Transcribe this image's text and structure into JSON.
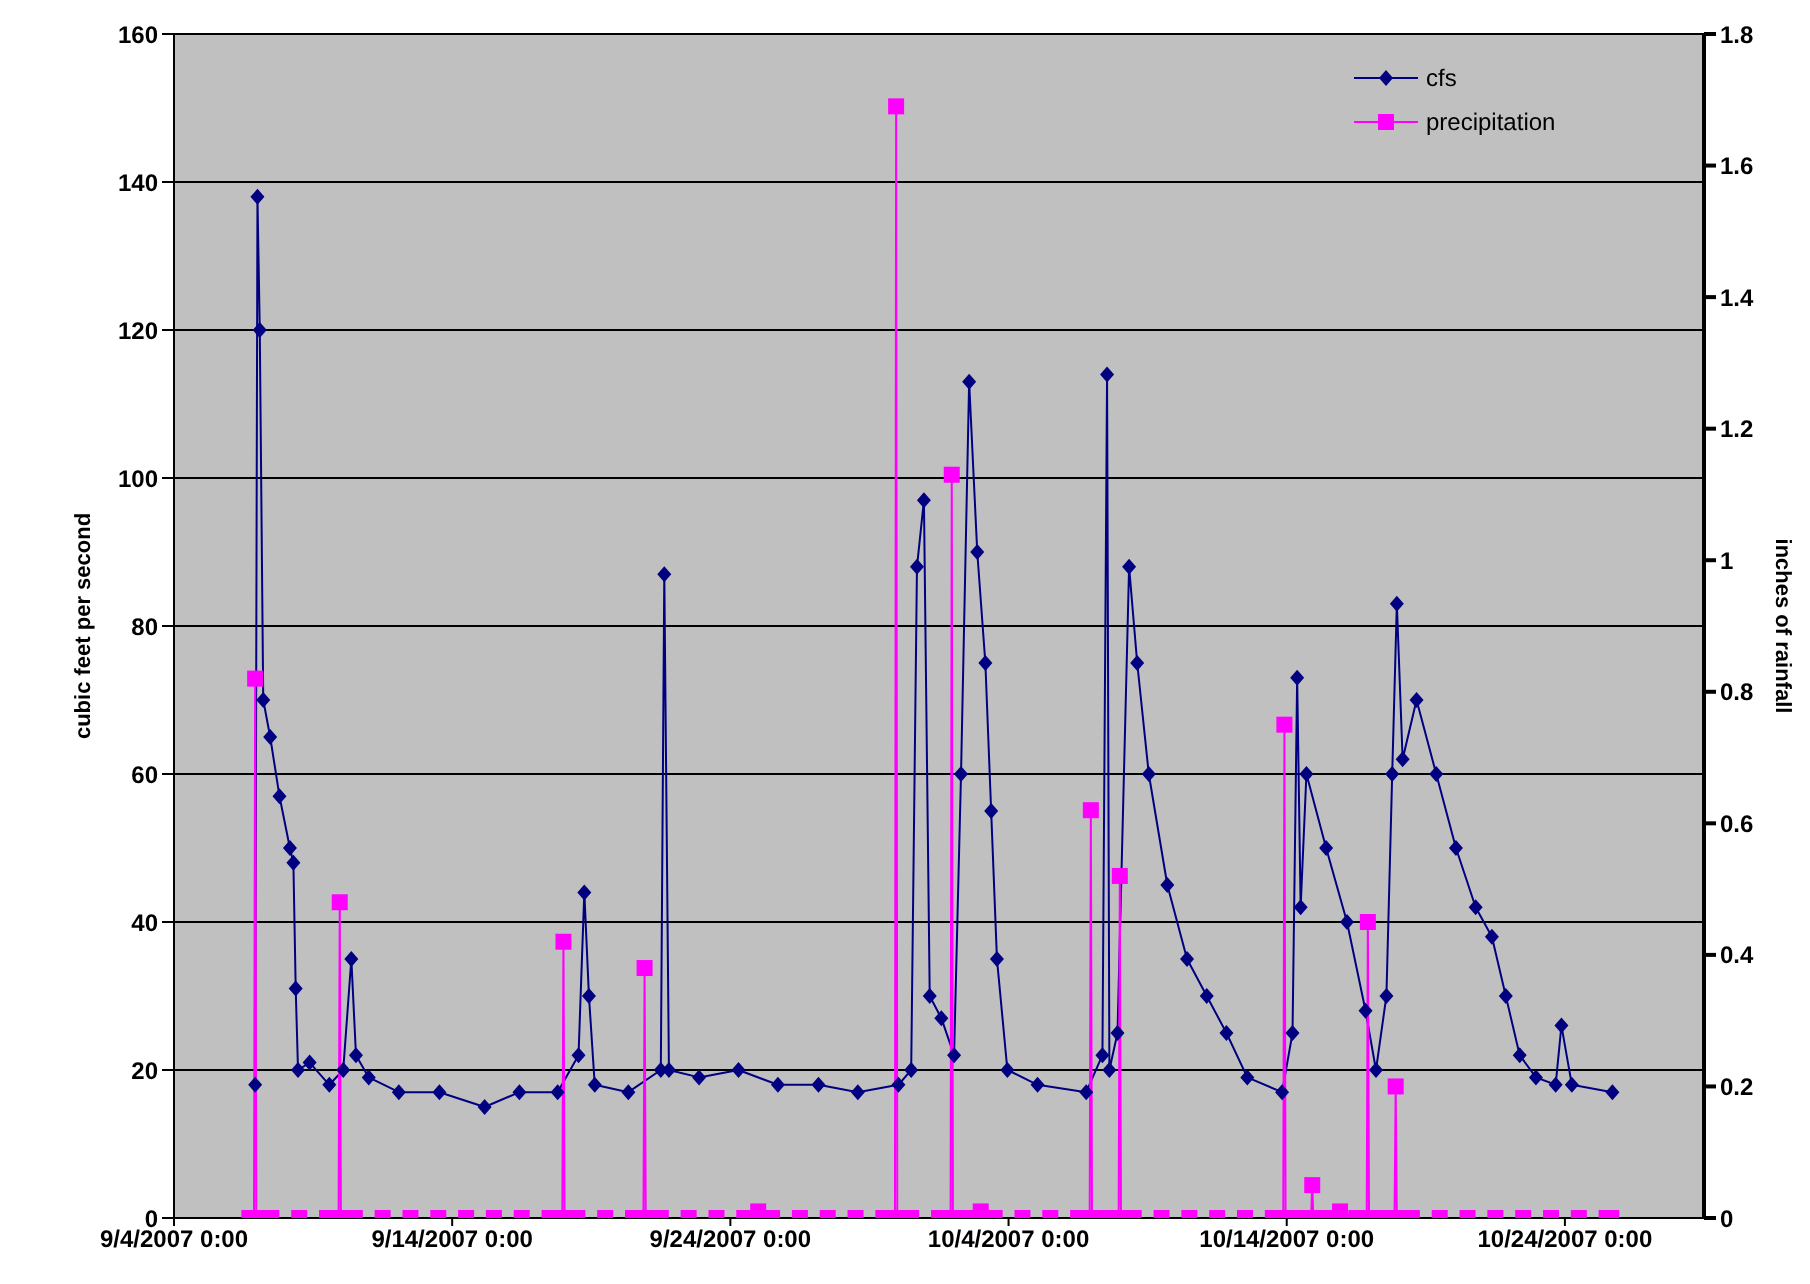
{
  "chart_data": {
    "type": "line",
    "xlabel": null,
    "ylabel": "cubic feet per second",
    "y2label": "inches of rainfall",
    "xlim": [
      "2007-09-04",
      "2007-10-29"
    ],
    "xticks": [
      {
        "value": "2007-09-04",
        "label": "9/4/2007 0:00"
      },
      {
        "value": "2007-09-14",
        "label": "9/14/2007 0:00"
      },
      {
        "value": "2007-09-24",
        "label": "9/24/2007 0:00"
      },
      {
        "value": "2007-10-04",
        "label": "10/4/2007 0:00"
      },
      {
        "value": "2007-10-14",
        "label": "10/14/2007 0:00"
      },
      {
        "value": "2007-10-24",
        "label": "10/24/2007 0:00"
      }
    ],
    "ylim": [
      0,
      160
    ],
    "yticks": [
      0,
      20,
      40,
      60,
      80,
      100,
      120,
      140,
      160
    ],
    "y2lim": [
      0,
      1.8
    ],
    "y2ticks": [
      0,
      0.2,
      0.4,
      0.6,
      0.8,
      1,
      1.2,
      1.4,
      1.6,
      1.8
    ],
    "grid": "y",
    "legend": "top right",
    "series": [
      {
        "name": "cfs",
        "color": "#000080",
        "marker": "diamond",
        "x": [
          "2007-09-06T22:00",
          "2007-09-07T00:00",
          "2007-09-07T02:00",
          "2007-09-07T05:00",
          "2007-09-07T11:00",
          "2007-09-07T19:00",
          "2007-09-08T04:00",
          "2007-09-08T07:00",
          "2007-09-08T09:00",
          "2007-09-08T11:00",
          "2007-09-08T21:00",
          "2007-09-09T14:00",
          "2007-09-10T02:00",
          "2007-09-10T09:00",
          "2007-09-10T13:00",
          "2007-09-11T00:00",
          "2007-09-12T02:00",
          "2007-09-13T13:00",
          "2007-09-15T04:00",
          "2007-09-16T10:00",
          "2007-09-17T19:00",
          "2007-09-18T13:00",
          "2007-09-18T18:00",
          "2007-09-18T22:00",
          "2007-09-19T03:00",
          "2007-09-20T08:00",
          "2007-09-21T12:00",
          "2007-09-21T15:00",
          "2007-09-21T19:00",
          "2007-09-22T21:00",
          "2007-09-24T07:00",
          "2007-09-25T17:00",
          "2007-09-27T04:00",
          "2007-09-28T14:00",
          "2007-09-30T01:00",
          "2007-09-30T12:00",
          "2007-09-30T17:00",
          "2007-09-30T23:00",
          "2007-10-01T04:00",
          "2007-10-01T14:00",
          "2007-10-02T01:00",
          "2007-10-02T07:00",
          "2007-10-02T14:00",
          "2007-10-02T21:00",
          "2007-10-03T04:00",
          "2007-10-03T09:00",
          "2007-10-03T14:00",
          "2007-10-03T23:00",
          "2007-10-05T01:00",
          "2007-10-06T19:00",
          "2007-10-07T09:00",
          "2007-10-07T13:00",
          "2007-10-07T15:00",
          "2007-10-07T22:00",
          "2007-10-08T08:00",
          "2007-10-08T15:00",
          "2007-10-09T01:00",
          "2007-10-09T17:00",
          "2007-10-10T10:00",
          "2007-10-11T03:00",
          "2007-10-11T20:00",
          "2007-10-12T14:00",
          "2007-10-13T20:00",
          "2007-10-14T05:00",
          "2007-10-14T09:00",
          "2007-10-14T12:00",
          "2007-10-14T17:00",
          "2007-10-15T10:00",
          "2007-10-16T04:00",
          "2007-10-16T20:00",
          "2007-10-17T05:00",
          "2007-10-17T14:00",
          "2007-10-17T19:00",
          "2007-10-17T23:00",
          "2007-10-18T04:00",
          "2007-10-18T16:00",
          "2007-10-19T09:00",
          "2007-10-20T02:00",
          "2007-10-20T19:00",
          "2007-10-21T09:00",
          "2007-10-21T21:00",
          "2007-10-22T09:00",
          "2007-10-22T23:00",
          "2007-10-23T16:00",
          "2007-10-23T21:00",
          "2007-10-24T06:00",
          "2007-10-25T17:00"
        ],
        "values": [
          18,
          138,
          120,
          70,
          65,
          57,
          50,
          48,
          31,
          20,
          21,
          18,
          20,
          35,
          22,
          19,
          17,
          17,
          15,
          17,
          17,
          22,
          44,
          30,
          18,
          17,
          20,
          87,
          20,
          19,
          20,
          18,
          18,
          17,
          18,
          20,
          88,
          97,
          30,
          27,
          22,
          60,
          113,
          90,
          75,
          55,
          35,
          20,
          18,
          17,
          22,
          114,
          20,
          25,
          88,
          75,
          60,
          45,
          35,
          30,
          25,
          19,
          17,
          25,
          73,
          42,
          60,
          50,
          40,
          28,
          20,
          30,
          60,
          83,
          62,
          70,
          60,
          50,
          42,
          38,
          30,
          22,
          19,
          18,
          26,
          18,
          17
        ]
      },
      {
        "name": "precipitation",
        "color": "#ff00ff",
        "marker": "square",
        "axis": "y2",
        "x": [
          "2007-09-06T17:00",
          "2007-09-06T21:00",
          "2007-09-06T22:00",
          "2007-09-06T23:00",
          "2007-09-07T12:00",
          "2007-09-08T12:00",
          "2007-09-09T12:00",
          "2007-09-09T22:00",
          "2007-09-09T23:00",
          "2007-09-10T00:00",
          "2007-09-10T12:00",
          "2007-09-11T12:00",
          "2007-09-12T12:00",
          "2007-09-13T12:00",
          "2007-09-14T12:00",
          "2007-09-15T12:00",
          "2007-09-16T12:00",
          "2007-09-17T12:00",
          "2007-09-17T23:00",
          "2007-09-18T00:00",
          "2007-09-18T01:00",
          "2007-09-18T12:00",
          "2007-09-19T12:00",
          "2007-09-20T12:00",
          "2007-09-20T21:00",
          "2007-09-20T22:00",
          "2007-09-20T23:00",
          "2007-09-21T12:00",
          "2007-09-22T12:00",
          "2007-09-23T12:00",
          "2007-09-24T12:00",
          "2007-09-25T00:00",
          "2007-09-25T12:00",
          "2007-09-26T12:00",
          "2007-09-27T12:00",
          "2007-09-28T12:00",
          "2007-09-29T12:00",
          "2007-09-29T22:00",
          "2007-09-29T23:00",
          "2007-09-30T00:00",
          "2007-09-30T12:00",
          "2007-10-01T12:00",
          "2007-10-01T22:00",
          "2007-10-01T23:00",
          "2007-10-02T00:00",
          "2007-10-02T12:00",
          "2007-10-03T00:00",
          "2007-10-03T12:00",
          "2007-10-04T12:00",
          "2007-10-05T12:00",
          "2007-10-06T12:00",
          "2007-10-06T22:00",
          "2007-10-06T23:00",
          "2007-10-07T00:00",
          "2007-10-07T12:00",
          "2007-10-07T23:00",
          "2007-10-08T00:00",
          "2007-10-08T01:00",
          "2007-10-08T12:00",
          "2007-10-09T12:00",
          "2007-10-10T12:00",
          "2007-10-11T12:00",
          "2007-10-12T12:00",
          "2007-10-13T12:00",
          "2007-10-13T21:00",
          "2007-10-13T22:00",
          "2007-10-13T23:00",
          "2007-10-14T12:00",
          "2007-10-14T21:00",
          "2007-10-14T22:00",
          "2007-10-14T23:00",
          "2007-10-15T12:00",
          "2007-10-15T22:00",
          "2007-10-16T12:00",
          "2007-10-16T21:00",
          "2007-10-16T22:00",
          "2007-10-16T23:00",
          "2007-10-17T12:00",
          "2007-10-17T21:00",
          "2007-10-17T22:00",
          "2007-10-17T23:00",
          "2007-10-18T12:00",
          "2007-10-19T12:00",
          "2007-10-20T12:00",
          "2007-10-21T12:00",
          "2007-10-22T12:00",
          "2007-10-23T12:00",
          "2007-10-24T12:00",
          "2007-10-25T12:00",
          "2007-10-25T16:00"
        ],
        "values": [
          0,
          0,
          0.82,
          0,
          0,
          0,
          0,
          0,
          0.48,
          0,
          0,
          0,
          0,
          0,
          0,
          0,
          0,
          0,
          0,
          0.42,
          0,
          0,
          0,
          0,
          0,
          0.38,
          0,
          0,
          0,
          0,
          0,
          0.01,
          0,
          0,
          0,
          0,
          0,
          0,
          1.69,
          0,
          0,
          0,
          0,
          1.13,
          0,
          0,
          0.01,
          0,
          0,
          0,
          0,
          0,
          0.62,
          0,
          0,
          0,
          0.52,
          0,
          0,
          0,
          0,
          0,
          0,
          0,
          0,
          0.75,
          0,
          0,
          0,
          0.05,
          0,
          0,
          0.01,
          0,
          0,
          0.45,
          0,
          0,
          0,
          0.2,
          0,
          0,
          0,
          0,
          0,
          0,
          0,
          0,
          0,
          0
        ]
      }
    ]
  }
}
